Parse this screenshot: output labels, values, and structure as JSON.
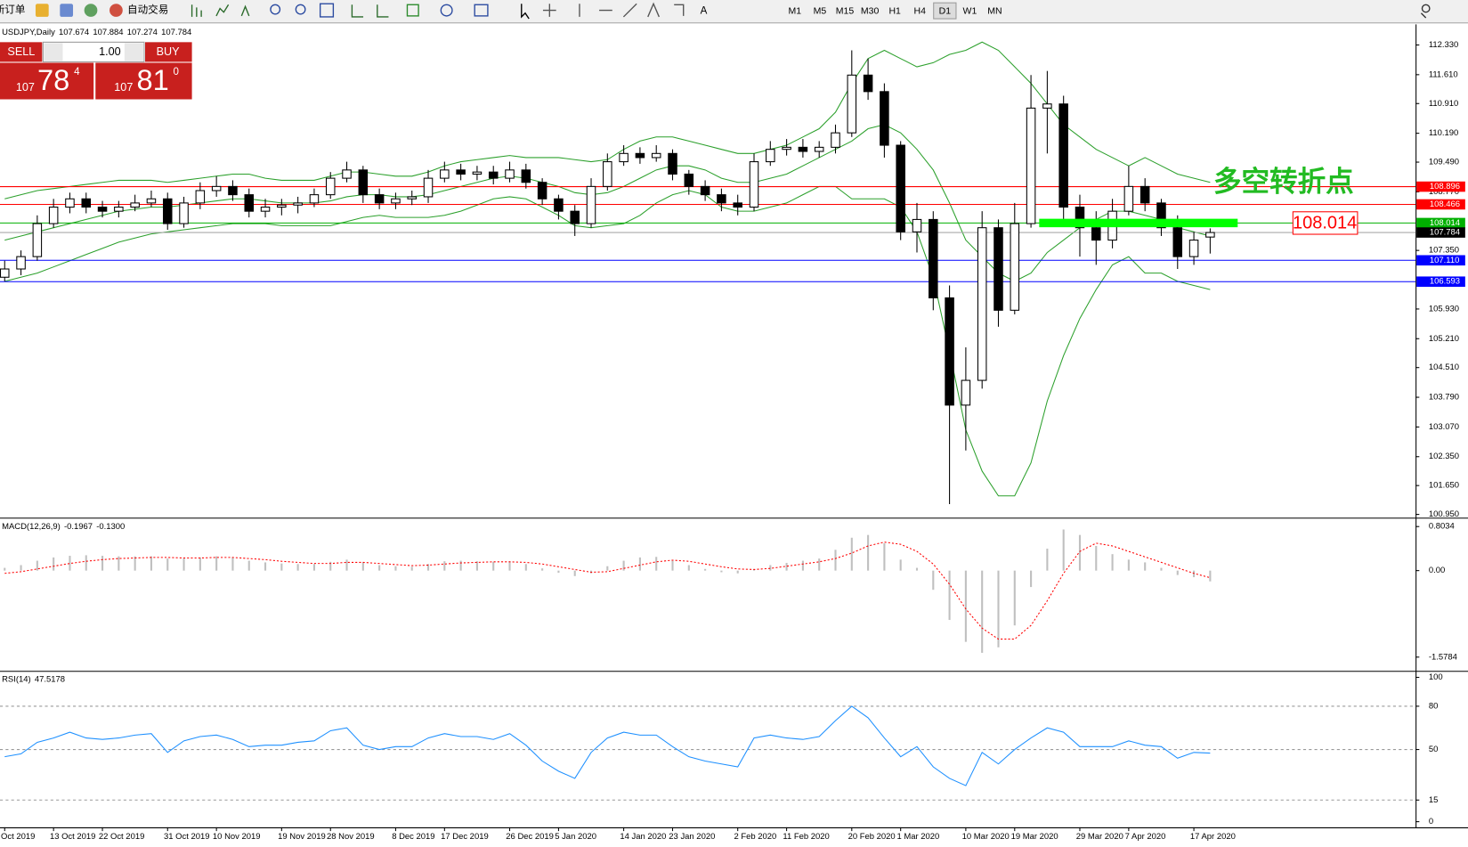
{
  "toolbar": {
    "new_order": "新订单",
    "auto_trading": "自动交易",
    "timeframes": [
      "M1",
      "M5",
      "M15",
      "M30",
      "H1",
      "H4",
      "D1",
      "W1",
      "MN"
    ],
    "active_timeframe": "D1"
  },
  "trade_panel": {
    "sell": "SELL",
    "buy": "BUY",
    "lots": "1.00",
    "bid": [
      "107",
      "78",
      "4"
    ],
    "ask": [
      "107",
      "81",
      "0"
    ]
  },
  "chart_data": [
    {
      "type": "candlestick",
      "title": "USDJPY,Daily",
      "categories": [
        "Oct 2019",
        null,
        null,
        "13 Oct 2019",
        null,
        null,
        "22 Oct 2019",
        null,
        null,
        null,
        "31 Oct 2019",
        null,
        null,
        "10 Nov 2019",
        null,
        null,
        null,
        "19 Nov 2019",
        null,
        null,
        "28 Nov 2019",
        null,
        null,
        null,
        "8 Dec 2019",
        null,
        null,
        "17 Dec 2019",
        null,
        null,
        null,
        "26 Dec 2019",
        null,
        null,
        "5 Jan 2020",
        null,
        null,
        null,
        "14 Jan 2020",
        null,
        null,
        "23 Jan 2020",
        null,
        null,
        null,
        "2 Feb 2020",
        null,
        null,
        "11 Feb 2020",
        null,
        null,
        null,
        "20 Feb 2020",
        null,
        null,
        "1 Mar 2020",
        null,
        null,
        null,
        "10 Mar 2020",
        null,
        null,
        "19 Mar 2020",
        null,
        null,
        null,
        "29 Mar 2020",
        null,
        null,
        "7 Apr 2020",
        null,
        null,
        null,
        "17 Apr 2020",
        null
      ],
      "open": [
        106.7,
        106.9,
        107.2,
        108.0,
        108.4,
        108.6,
        108.4,
        108.3,
        108.4,
        108.5,
        108.6,
        108.0,
        108.5,
        108.8,
        108.9,
        108.7,
        108.3,
        108.4,
        108.45,
        108.5,
        108.7,
        109.1,
        109.3,
        108.7,
        108.5,
        108.6,
        108.65,
        109.1,
        109.3,
        109.2,
        109.25,
        109.1,
        109.3,
        109.0,
        108.6,
        108.3,
        108.0,
        108.9,
        109.5,
        109.7,
        109.6,
        109.7,
        109.2,
        108.9,
        108.7,
        108.5,
        108.4,
        109.5,
        109.8,
        109.85,
        109.75,
        109.85,
        110.2,
        111.6,
        111.2,
        109.9,
        107.8,
        108.1,
        106.2,
        103.6,
        104.2,
        107.9,
        105.9,
        108.0,
        110.8,
        110.9,
        108.4,
        107.9,
        107.6,
        108.3,
        108.9,
        108.5,
        107.9,
        107.2,
        107.674
      ],
      "high": [
        107.1,
        107.35,
        108.2,
        108.6,
        108.75,
        108.75,
        108.55,
        108.55,
        108.7,
        108.8,
        108.75,
        108.65,
        109.0,
        109.15,
        109.05,
        108.85,
        108.6,
        108.6,
        108.65,
        108.85,
        109.25,
        109.5,
        109.4,
        108.85,
        108.75,
        108.8,
        109.3,
        109.5,
        109.45,
        109.4,
        109.4,
        109.5,
        109.45,
        109.1,
        108.7,
        108.45,
        109.1,
        109.7,
        109.9,
        109.85,
        109.9,
        109.8,
        109.3,
        109.05,
        108.85,
        108.7,
        109.7,
        110.0,
        110.05,
        110.05,
        110.0,
        110.4,
        112.2,
        112.0,
        111.4,
        110.0,
        108.5,
        108.3,
        106.5,
        105.0,
        108.3,
        108.1,
        108.5,
        111.6,
        111.7,
        111.1,
        108.7,
        108.3,
        108.6,
        109.4,
        109.1,
        108.6,
        108.2,
        107.8,
        107.884
      ],
      "low": [
        106.6,
        106.75,
        107.1,
        107.9,
        108.25,
        108.25,
        108.15,
        108.15,
        108.3,
        108.4,
        107.85,
        107.9,
        108.35,
        108.65,
        108.55,
        108.15,
        108.15,
        108.2,
        108.25,
        108.4,
        108.6,
        109.0,
        108.5,
        108.35,
        108.35,
        108.45,
        108.5,
        109.0,
        109.05,
        109.05,
        108.95,
        109.0,
        108.85,
        108.45,
        108.1,
        107.7,
        107.9,
        108.8,
        109.4,
        109.45,
        109.5,
        109.05,
        108.7,
        108.55,
        108.3,
        108.2,
        108.3,
        109.4,
        109.65,
        109.6,
        109.6,
        109.7,
        110.1,
        111.0,
        109.6,
        107.6,
        107.3,
        105.9,
        101.2,
        102.5,
        104.0,
        105.5,
        105.8,
        107.9,
        109.7,
        108.0,
        107.2,
        107.0,
        107.4,
        108.2,
        108.3,
        107.7,
        106.9,
        107.0,
        107.274
      ],
      "close": [
        106.9,
        107.2,
        108.0,
        108.4,
        108.6,
        108.4,
        108.3,
        108.4,
        108.5,
        108.6,
        108.0,
        108.5,
        108.8,
        108.9,
        108.7,
        108.3,
        108.4,
        108.45,
        108.5,
        108.7,
        109.1,
        109.3,
        108.7,
        108.5,
        108.6,
        108.65,
        109.1,
        109.3,
        109.2,
        109.25,
        109.1,
        109.3,
        109.0,
        108.6,
        108.3,
        108.0,
        108.9,
        109.5,
        109.7,
        109.6,
        109.7,
        109.2,
        108.9,
        108.7,
        108.5,
        108.4,
        109.5,
        109.8,
        109.85,
        109.75,
        109.85,
        110.2,
        111.6,
        111.2,
        109.9,
        107.8,
        108.1,
        106.2,
        103.6,
        104.2,
        107.9,
        105.9,
        108.0,
        110.8,
        110.9,
        108.4,
        107.9,
        107.6,
        108.3,
        108.9,
        108.5,
        107.9,
        107.2,
        107.6,
        107.784
      ],
      "color": "#000000",
      "up_color": "#ffffff",
      "overlays": [
        {
          "color": "#2ca02c",
          "values": [
            108.6,
            108.7,
            108.8,
            108.85,
            108.9,
            108.95,
            109.0,
            109.05,
            109.05,
            109.05,
            109.0,
            109.05,
            109.1,
            109.15,
            109.2,
            109.2,
            109.1,
            109.05,
            109.05,
            109.05,
            109.15,
            109.25,
            109.25,
            109.2,
            109.15,
            109.15,
            109.25,
            109.4,
            109.5,
            109.55,
            109.6,
            109.65,
            109.6,
            109.6,
            109.6,
            109.55,
            109.5,
            109.55,
            109.8,
            110.0,
            110.1,
            110.1,
            110.0,
            109.9,
            109.8,
            109.7,
            109.7,
            109.8,
            109.9,
            110.1,
            110.3,
            110.7,
            111.4,
            112.0,
            112.2,
            112.0,
            111.8,
            111.9,
            112.1,
            112.2,
            112.4,
            112.2,
            111.8,
            111.4,
            110.9,
            110.4,
            110.1,
            109.8,
            109.6,
            109.4,
            109.6,
            109.4,
            109.2,
            109.1,
            109.0
          ]
        },
        {
          "color": "#2ca02c",
          "values": [
            107.6,
            107.7,
            107.8,
            107.9,
            108.0,
            108.1,
            108.2,
            108.3,
            108.35,
            108.4,
            108.4,
            108.45,
            108.5,
            108.55,
            108.6,
            108.6,
            108.55,
            108.5,
            108.5,
            108.5,
            108.55,
            108.65,
            108.7,
            108.7,
            108.65,
            108.65,
            108.7,
            108.8,
            108.9,
            109.0,
            109.1,
            109.15,
            109.1,
            109.0,
            108.9,
            108.75,
            108.7,
            108.75,
            108.9,
            109.1,
            109.3,
            109.4,
            109.4,
            109.3,
            109.1,
            109.0,
            109.0,
            109.1,
            109.2,
            109.4,
            109.6,
            109.8,
            110.0,
            110.3,
            110.4,
            110.2,
            109.8,
            109.3,
            108.5,
            107.6,
            107.2,
            106.8,
            106.6,
            106.8,
            107.3,
            107.6,
            107.9,
            108.1,
            108.3,
            108.3,
            108.2,
            108.1,
            107.9,
            107.8,
            107.7
          ]
        },
        {
          "color": "#2ca02c",
          "values": [
            106.6,
            106.7,
            106.8,
            106.95,
            107.1,
            107.25,
            107.4,
            107.55,
            107.65,
            107.75,
            107.8,
            107.85,
            107.9,
            107.95,
            108.0,
            108.0,
            108.0,
            107.95,
            107.95,
            107.95,
            107.95,
            108.05,
            108.15,
            108.2,
            108.15,
            108.15,
            108.15,
            108.2,
            108.3,
            108.45,
            108.6,
            108.65,
            108.6,
            108.4,
            108.2,
            107.95,
            107.9,
            107.95,
            108.0,
            108.2,
            108.5,
            108.7,
            108.8,
            108.7,
            108.4,
            108.3,
            108.3,
            108.4,
            108.5,
            108.7,
            108.9,
            108.9,
            108.6,
            108.6,
            108.6,
            108.4,
            107.8,
            106.7,
            104.9,
            103.0,
            102.0,
            101.4,
            101.4,
            102.2,
            103.7,
            104.8,
            105.7,
            106.4,
            107.0,
            107.2,
            106.8,
            106.8,
            106.6,
            106.5,
            106.4
          ]
        }
      ],
      "levels": [
        {
          "value": 108.896,
          "color": "#ff0000"
        },
        {
          "value": 108.466,
          "color": "#ff0000"
        },
        {
          "value": 108.014,
          "color": "#00b000"
        },
        {
          "value": 107.11,
          "label": "107.110",
          "color": "#0000ff"
        },
        {
          "value": 106.593,
          "color": "#0000ff"
        }
      ],
      "annotation": "多空转折点",
      "annotation_color": "#22bb22",
      "ylim": [
        100.883,
        112.807
      ],
      "yticks": [
        {
          "value": 112.33,
          "label": "112.330"
        },
        {
          "value": 111.61,
          "label": "111.610"
        },
        {
          "value": 110.91,
          "label": "110.910"
        },
        {
          "value": 110.19,
          "label": "110.190"
        },
        {
          "value": 109.49,
          "label": "109.490"
        },
        {
          "value": 108.77,
          "label": "108.770"
        },
        {
          "value": 107.35,
          "label": "107.350"
        },
        {
          "value": 105.93,
          "label": "105.930"
        },
        {
          "value": 105.21,
          "label": "105.210"
        },
        {
          "value": 104.51,
          "label": "104.510"
        },
        {
          "value": 103.79,
          "label": "103.790"
        },
        {
          "value": 103.07,
          "label": "103.070"
        },
        {
          "value": 102.35,
          "label": "102.350"
        },
        {
          "value": 101.65,
          "label": "101.650"
        },
        {
          "value": 100.95,
          "label": "100.950"
        }
      ]
    },
    {
      "type": "combo",
      "title": "MACD(12,26,9)",
      "series": [
        {
          "type": "bar",
          "color": "#c0c0c0",
          "values": [
            0.05,
            0.1,
            0.18,
            0.24,
            0.27,
            0.28,
            0.27,
            0.26,
            0.26,
            0.26,
            0.22,
            0.22,
            0.24,
            0.26,
            0.24,
            0.18,
            0.15,
            0.13,
            0.12,
            0.12,
            0.16,
            0.2,
            0.15,
            0.1,
            0.08,
            0.07,
            0.12,
            0.17,
            0.18,
            0.17,
            0.16,
            0.17,
            0.12,
            0.04,
            -0.04,
            -0.1,
            -0.05,
            0.08,
            0.18,
            0.24,
            0.25,
            0.18,
            0.1,
            0.03,
            -0.03,
            -0.05,
            0.03,
            0.1,
            0.14,
            0.18,
            0.22,
            0.38,
            0.6,
            0.65,
            0.5,
            0.2,
            0.05,
            -0.35,
            -0.9,
            -1.3,
            -1.5,
            -1.4,
            -1.0,
            -0.3,
            0.4,
            0.75,
            0.65,
            0.45,
            0.3,
            0.2,
            0.15,
            0.05,
            -0.08,
            -0.12,
            -0.1967
          ]
        },
        {
          "type": "line",
          "color": "#ff0000",
          "dashed": true,
          "values": [
            -0.05,
            -0.02,
            0.03,
            0.08,
            0.13,
            0.17,
            0.2,
            0.22,
            0.23,
            0.24,
            0.24,
            0.23,
            0.23,
            0.24,
            0.24,
            0.22,
            0.2,
            0.17,
            0.15,
            0.13,
            0.13,
            0.15,
            0.15,
            0.13,
            0.11,
            0.09,
            0.1,
            0.12,
            0.14,
            0.15,
            0.16,
            0.16,
            0.15,
            0.12,
            0.07,
            0.02,
            -0.03,
            -0.02,
            0.04,
            0.1,
            0.16,
            0.19,
            0.17,
            0.12,
            0.07,
            0.03,
            0.02,
            0.04,
            0.08,
            0.12,
            0.16,
            0.22,
            0.32,
            0.45,
            0.52,
            0.48,
            0.35,
            0.12,
            -0.25,
            -0.7,
            -1.05,
            -1.25,
            -1.25,
            -1.0,
            -0.55,
            -0.05,
            0.35,
            0.5,
            0.45,
            0.35,
            0.25,
            0.15,
            0.05,
            -0.05,
            -0.13
          ],
          "value_labels": [
            null,
            null,
            null,
            null,
            null,
            null,
            null,
            null,
            null,
            null,
            null,
            null,
            null,
            null,
            null,
            null,
            null,
            null,
            null,
            null,
            null,
            null,
            null,
            null,
            null,
            null,
            null,
            null,
            null,
            null,
            null,
            null,
            null,
            null,
            null,
            null,
            null,
            null,
            null,
            null,
            null,
            null,
            null,
            null,
            null,
            null,
            null,
            null,
            null,
            null,
            null,
            null,
            null,
            null,
            null,
            null,
            null,
            null,
            null,
            null,
            null,
            null,
            null,
            null,
            null,
            null,
            null,
            null,
            null,
            null,
            null,
            null,
            null,
            null,
            "-0.1300"
          ]
        }
      ],
      "ylim": [
        -1.812,
        0.923
      ],
      "yticks": [
        0.8034,
        {
          "value": 0,
          "label": "0.00"
        },
        -1.5784
      ]
    },
    {
      "type": "line",
      "title": "RSI(14)",
      "color": "#1e90ff",
      "values": [
        45,
        47,
        55,
        58,
        62,
        58,
        57,
        58,
        60,
        61,
        48,
        56,
        59,
        60,
        57,
        52,
        53,
        53,
        55,
        56,
        63,
        65,
        53,
        50,
        52,
        52,
        58,
        61,
        59,
        59,
        57,
        61,
        53,
        42,
        35,
        30,
        48,
        58,
        62,
        60,
        60,
        52,
        45,
        42,
        40,
        38,
        58,
        60,
        58,
        57,
        59,
        70,
        80,
        72,
        58,
        45,
        52,
        38,
        30,
        25,
        48,
        40,
        50,
        58,
        65,
        62,
        52,
        52,
        52,
        56,
        53,
        52,
        44,
        48,
        47.5178
      ],
      "ylim": [
        -3.9,
        103.2
      ],
      "yticks": [
        0,
        15,
        50,
        80,
        100
      ],
      "grid": "dashed"
    }
  ]
}
